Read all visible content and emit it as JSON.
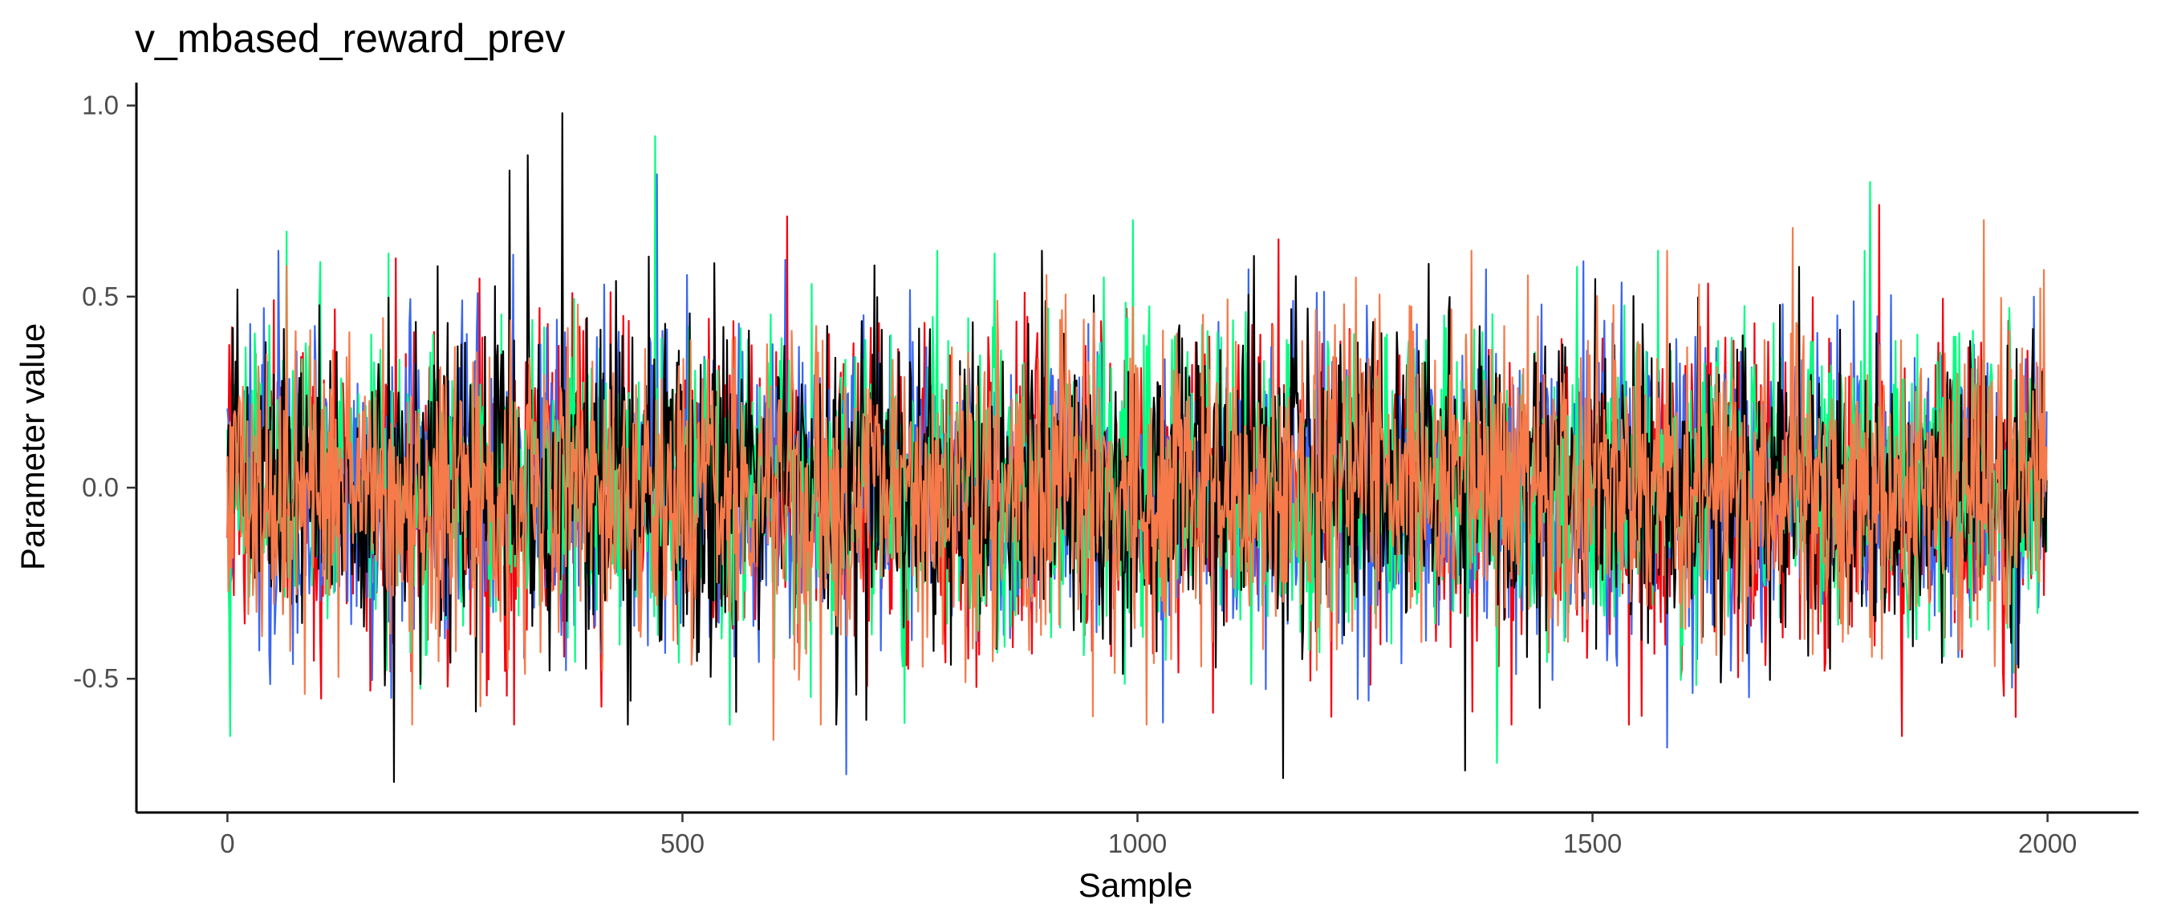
{
  "chart_data": {
    "type": "line",
    "title": "v_mbased_reward_prev",
    "xlabel": "Sample",
    "ylabel": "Parameter value",
    "xlim": [
      -100,
      2100
    ],
    "ylim": [
      -0.85,
      1.06
    ],
    "x_ticks": [
      0,
      500,
      1000,
      1500,
      2000
    ],
    "x_tick_labels": [
      "0",
      "500",
      "1000",
      "1500",
      "2000"
    ],
    "y_ticks": [
      -0.5,
      0.0,
      0.5,
      1.0
    ],
    "y_tick_labels": [
      "-0.5",
      "0.0",
      "0.5",
      "1.0"
    ],
    "grid": false,
    "legend": "none",
    "n_samples": 2000,
    "series": [
      {
        "color": "#f8000d",
        "mean": 0.0,
        "sd": 0.2,
        "peaks": [
          [
            5,
            0.42
          ],
          [
            185,
            0.6
          ],
          [
            615,
            0.71
          ],
          [
            1155,
            0.65
          ],
          [
            1815,
            0.74
          ],
          [
            1840,
            -0.65
          ]
        ]
      },
      {
        "color": "#3a66f5",
        "mean": 0.0,
        "sd": 0.2,
        "peaks": [
          [
            40,
            0.47
          ],
          [
            180,
            -0.55
          ],
          [
            472,
            0.82
          ],
          [
            680,
            -0.75
          ],
          [
            1582,
            -0.68
          ],
          [
            1985,
            0.5
          ]
        ]
      },
      {
        "color": "#00ff80",
        "mean": 0.0,
        "sd": 0.2,
        "peaks": [
          [
            3,
            -0.65
          ],
          [
            65,
            0.67
          ],
          [
            470,
            0.92
          ],
          [
            995,
            0.7
          ],
          [
            1395,
            -0.72
          ],
          [
            1805,
            0.8
          ]
        ]
      },
      {
        "color": "#000000",
        "mean": 0.0,
        "sd": 0.2,
        "peaks": [
          [
            183,
            -0.77
          ],
          [
            310,
            0.83
          ],
          [
            330,
            0.87
          ],
          [
            368,
            0.98
          ],
          [
            1160,
            -0.76
          ],
          [
            1360,
            -0.74
          ]
        ]
      },
      {
        "color": "#f67a4a",
        "mean": 0.0,
        "sd": 0.2,
        "peaks": [
          [
            65,
            0.58
          ],
          [
            600,
            -0.66
          ],
          [
            1240,
            0.55
          ],
          [
            1720,
            0.68
          ],
          [
            1930,
            0.7
          ]
        ]
      }
    ]
  }
}
